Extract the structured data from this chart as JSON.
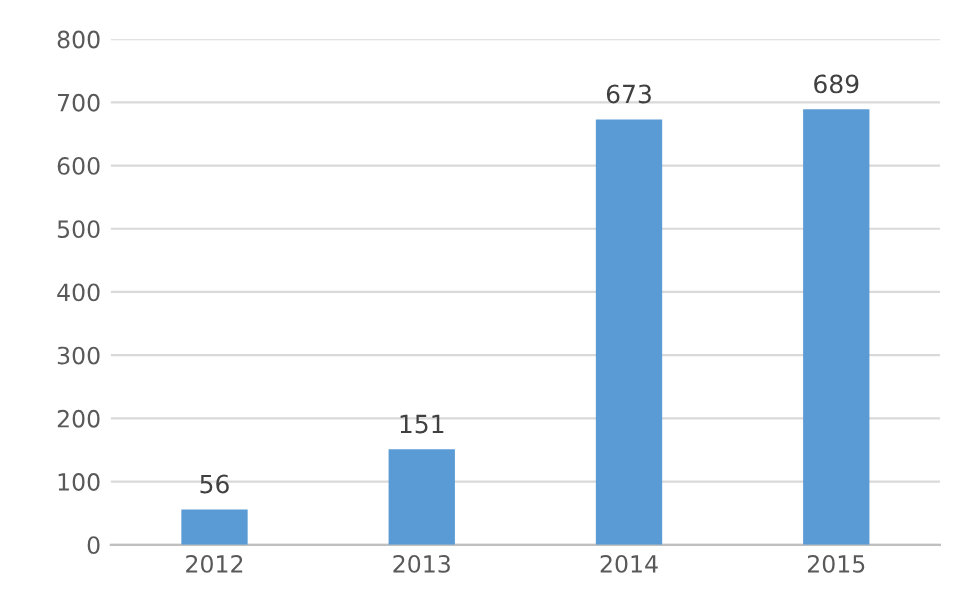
{
  "chart_data": {
    "type": "bar",
    "categories": [
      "2012",
      "2013",
      "2014",
      "2015"
    ],
    "values": [
      56,
      151,
      673,
      689
    ],
    "color": "#5b9bd5",
    "ylim": [
      0,
      800
    ],
    "yticks": [
      0,
      100,
      200,
      300,
      400,
      500,
      600,
      700,
      800
    ],
    "grid": "y",
    "data_labels": true
  }
}
